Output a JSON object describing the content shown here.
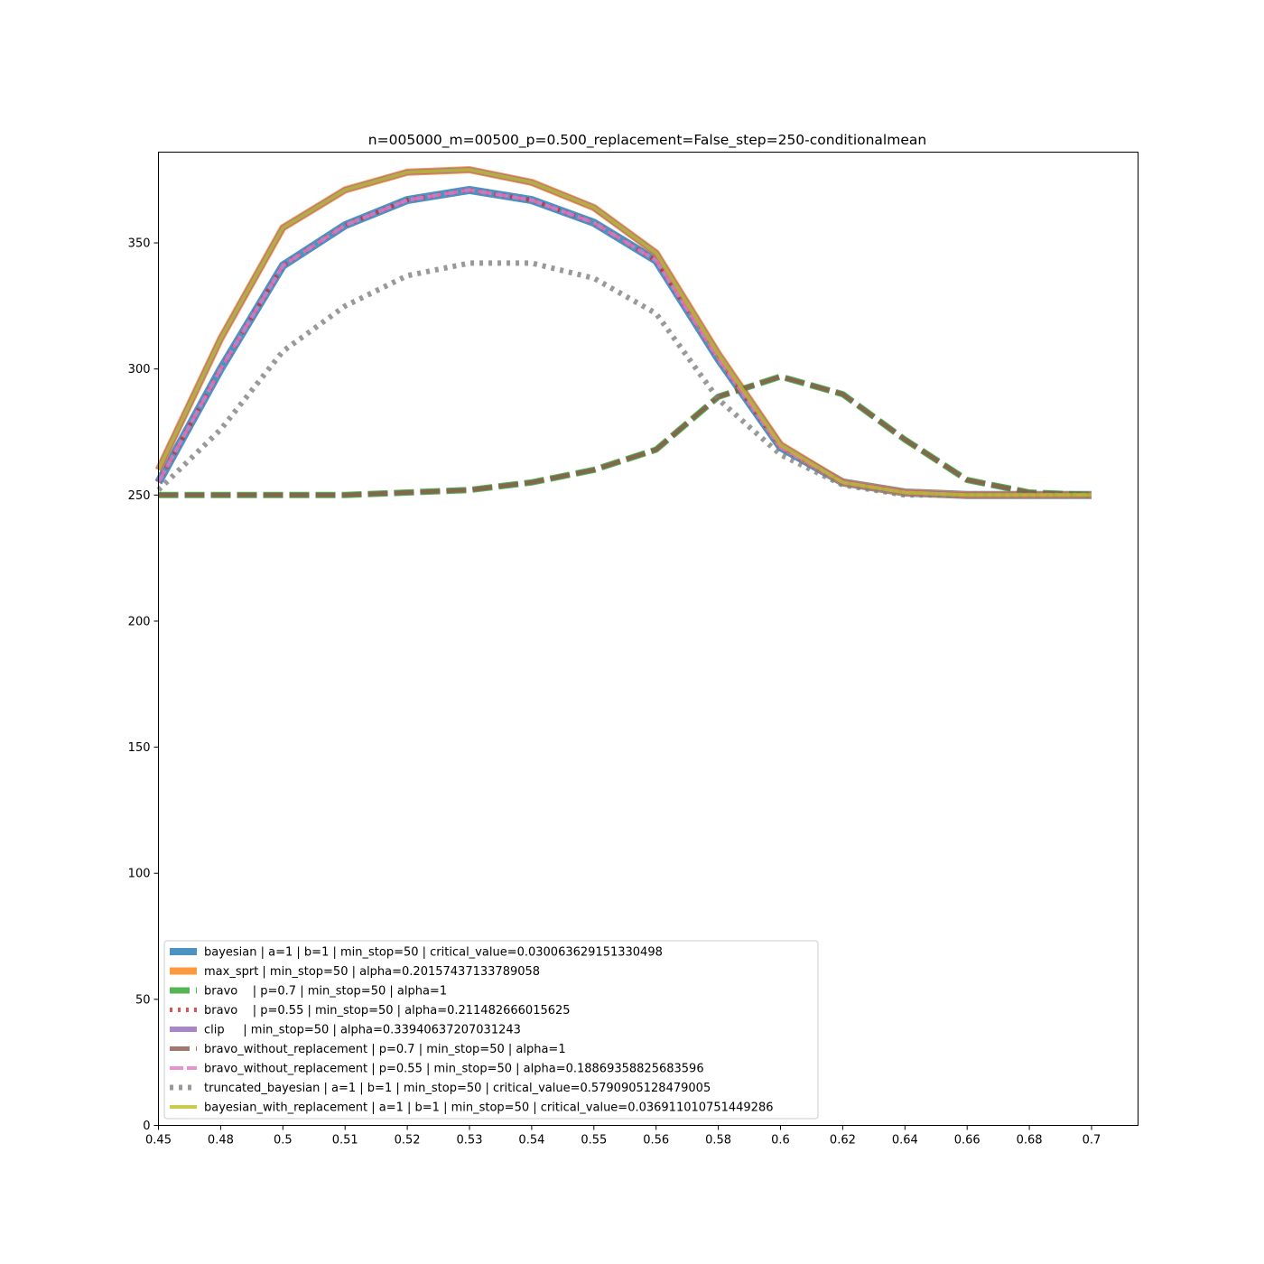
{
  "chart_data": {
    "type": "line",
    "title": "n=005000_m=00500_p=0.500_replacement=False_step=250-conditionalmean",
    "xlabel": "",
    "ylabel": "",
    "x": [
      0.45,
      0.48,
      0.5,
      0.51,
      0.52,
      0.53,
      0.54,
      0.55,
      0.56,
      0.58,
      0.6,
      0.62,
      0.64,
      0.66,
      0.68,
      0.7
    ],
    "x_tick_labels": [
      "0.45",
      "0.48",
      "0.5",
      "0.51",
      "0.52",
      "0.53",
      "0.54",
      "0.55",
      "0.56",
      "0.58",
      "0.6",
      "0.62",
      "0.64",
      "0.66",
      "0.68",
      "0.7"
    ],
    "y_ticks": [
      0,
      50,
      100,
      150,
      200,
      250,
      300,
      350
    ],
    "ylim": [
      0,
      386
    ],
    "grid": false,
    "legend_position": "lower-left",
    "series": [
      {
        "name": "bayesian | a=1 | b=1 | min_stop=50 | critical_value=0.030063629151330498",
        "color": "#1f77b4",
        "style": "solid",
        "values": [
          255,
          300,
          341,
          357,
          367,
          371,
          367,
          358,
          343,
          304,
          269,
          255,
          251,
          250,
          250,
          250
        ]
      },
      {
        "name": "max_sprt | min_stop=50 | alpha=0.20157437133789058",
        "color": "#ff7f0e",
        "style": "solid",
        "values": [
          260,
          312,
          356,
          371,
          378,
          379,
          374,
          364,
          346,
          306,
          270,
          255,
          251,
          250,
          250,
          250
        ]
      },
      {
        "name": "bravo    | p=0.7 | min_stop=50 | alpha=1",
        "color": "#2ca02c",
        "style": "dashed",
        "values": [
          250,
          250,
          250,
          250,
          251,
          252,
          255,
          260,
          268,
          289,
          297,
          290,
          272,
          256,
          251,
          250
        ]
      },
      {
        "name": "bravo    | p=0.55 | min_stop=50 | alpha=0.211482666015625",
        "color": "#d62728",
        "style": "dotted",
        "values": [
          255,
          300,
          341,
          357,
          367,
          371,
          367,
          358,
          343,
          304,
          269,
          255,
          251,
          250,
          250,
          250
        ]
      },
      {
        "name": "clip     | min_stop=50 | alpha=0.33940637207031243",
        "color": "#9467bd",
        "style": "solid",
        "values": [
          260,
          312,
          356,
          371,
          378,
          379,
          374,
          364,
          346,
          306,
          270,
          255,
          251,
          250,
          250,
          250
        ]
      },
      {
        "name": "bravo_without_replacement | p=0.7 | min_stop=50 | alpha=1",
        "color": "#8c564b",
        "style": "dashed",
        "values": [
          250,
          250,
          250,
          250,
          251,
          252,
          255,
          260,
          268,
          289,
          297,
          290,
          272,
          256,
          251,
          250
        ]
      },
      {
        "name": "bravo_without_replacement | p=0.55 | min_stop=50 | alpha=0.18869358825683596",
        "color": "#e377c2",
        "style": "dashed",
        "values": [
          255,
          300,
          341,
          357,
          367,
          371,
          367,
          358,
          343,
          304,
          269,
          255,
          251,
          250,
          250,
          250
        ]
      },
      {
        "name": "truncated_bayesian | a=1 | b=1 | min_stop=50 | critical_value=0.5790905128479005",
        "color": "#7f7f7f",
        "style": "dotted",
        "values": [
          252,
          276,
          307,
          325,
          337,
          342,
          342,
          336,
          322,
          288,
          266,
          254,
          250,
          250,
          250,
          250
        ]
      },
      {
        "name": "bayesian_with_replacement | a=1 | b=1 | min_stop=50 | critical_value=0.036911010751449286",
        "color": "#bcbd22",
        "style": "solid",
        "values": [
          260,
          312,
          356,
          371,
          378,
          379,
          374,
          364,
          346,
          306,
          270,
          255,
          251,
          250,
          250,
          250
        ]
      }
    ]
  }
}
